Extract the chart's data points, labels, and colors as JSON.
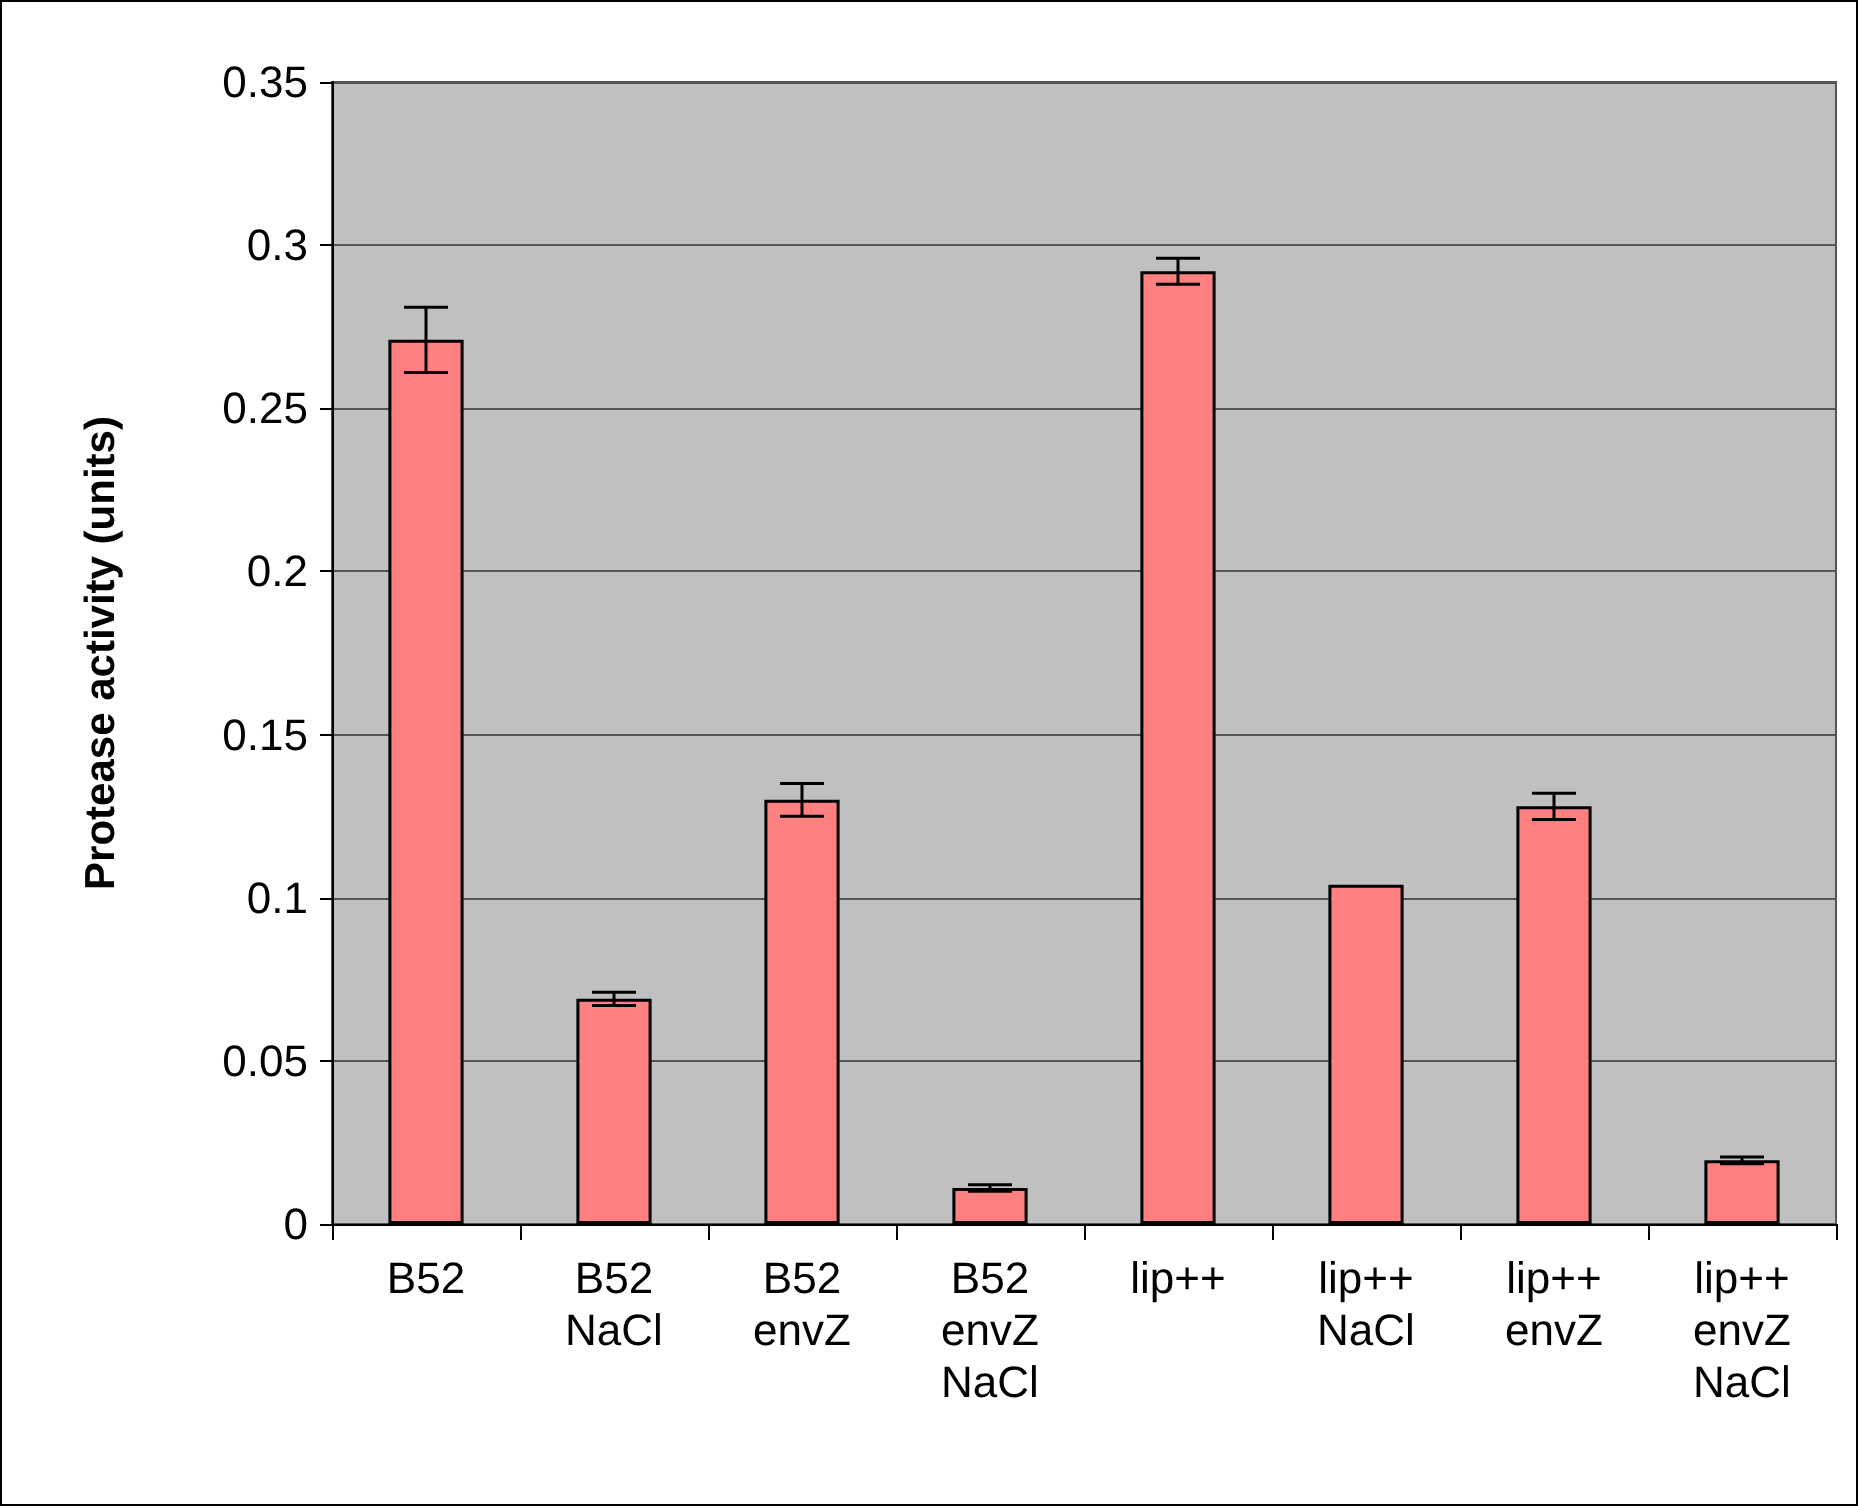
{
  "chart_data": {
    "type": "bar",
    "ylabel": "Protease activity (units)",
    "categories": [
      "B52",
      "B52\nNaCl",
      "B52\nenvZ",
      "B52\nenvZ\nNaCl",
      "lip++",
      "lip++\nNaCl",
      "lip++\nenvZ",
      "lip++\nenvZ\nNaCl"
    ],
    "values": [
      0.271,
      0.069,
      0.13,
      0.011,
      0.292,
      0.104,
      0.128,
      0.0195
    ],
    "errors": [
      0.01,
      0.002,
      0.005,
      0.001,
      0.004,
      null,
      0.004,
      0.001
    ],
    "color": "#ff8080",
    "ylim": [
      0,
      0.35
    ],
    "yticks": [
      0,
      0.05,
      0.1,
      0.15,
      0.2,
      0.25,
      0.3,
      0.35
    ],
    "grid": "y"
  }
}
